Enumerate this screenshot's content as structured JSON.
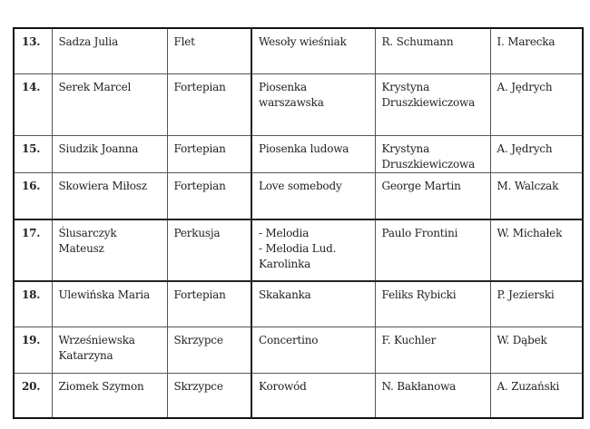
{
  "rows": [
    {
      "no": "13.",
      "name": "Sadza Julia",
      "instrument": "Flet",
      "piece": "Wesoły wieśniak",
      "composer": "R. Schumann",
      "teacher": "I. Marecka"
    },
    {
      "no": "14.",
      "name": "Serek Marcel",
      "instrument": "Fortepian",
      "piece": "Piosenka warszawska",
      "composer": "Krystyna Druszkiewiczowa",
      "teacher": "A. Jędrych"
    },
    {
      "no": "15.",
      "name": "Siudzik Joanna",
      "instrument": "Fortepian",
      "piece": "Piosenka ludowa",
      "composer": "Krystyna Druszkiewiczowa",
      "teacher": "A. Jędrych"
    },
    {
      "no": "16.",
      "name": "Skowiera Miłosz",
      "instrument": "Fortepian",
      "piece": "Love somebody",
      "composer": "George Martin",
      "teacher": "M. Walczak"
    },
    {
      "no": "17.",
      "name": "Ślusarczyk Mateusz",
      "instrument": "Perkusja",
      "piece": "- Melodia\n- Melodia Lud. Karolinka",
      "composer": "Paulo Frontini",
      "teacher": "W. Michałek"
    },
    {
      "no": "18.",
      "name": "Ulewińska Maria",
      "instrument": "Fortepian",
      "piece": "Skakanka",
      "composer": "Feliks Rybicki",
      "teacher": "P. Jezierski"
    },
    {
      "no": "19.",
      "name": "Wrześniewska Katarzyna",
      "instrument": "Skrzypce",
      "piece": "Concertino",
      "composer": "F. Kuchler",
      "teacher": "W. Dąbek"
    },
    {
      "no": "20.",
      "name": "Ziomek Szymon",
      "instrument": "Skrzypce",
      "piece": "Korowód",
      "composer": "N. Bakłanowa",
      "teacher": "A. Zuzański"
    }
  ]
}
